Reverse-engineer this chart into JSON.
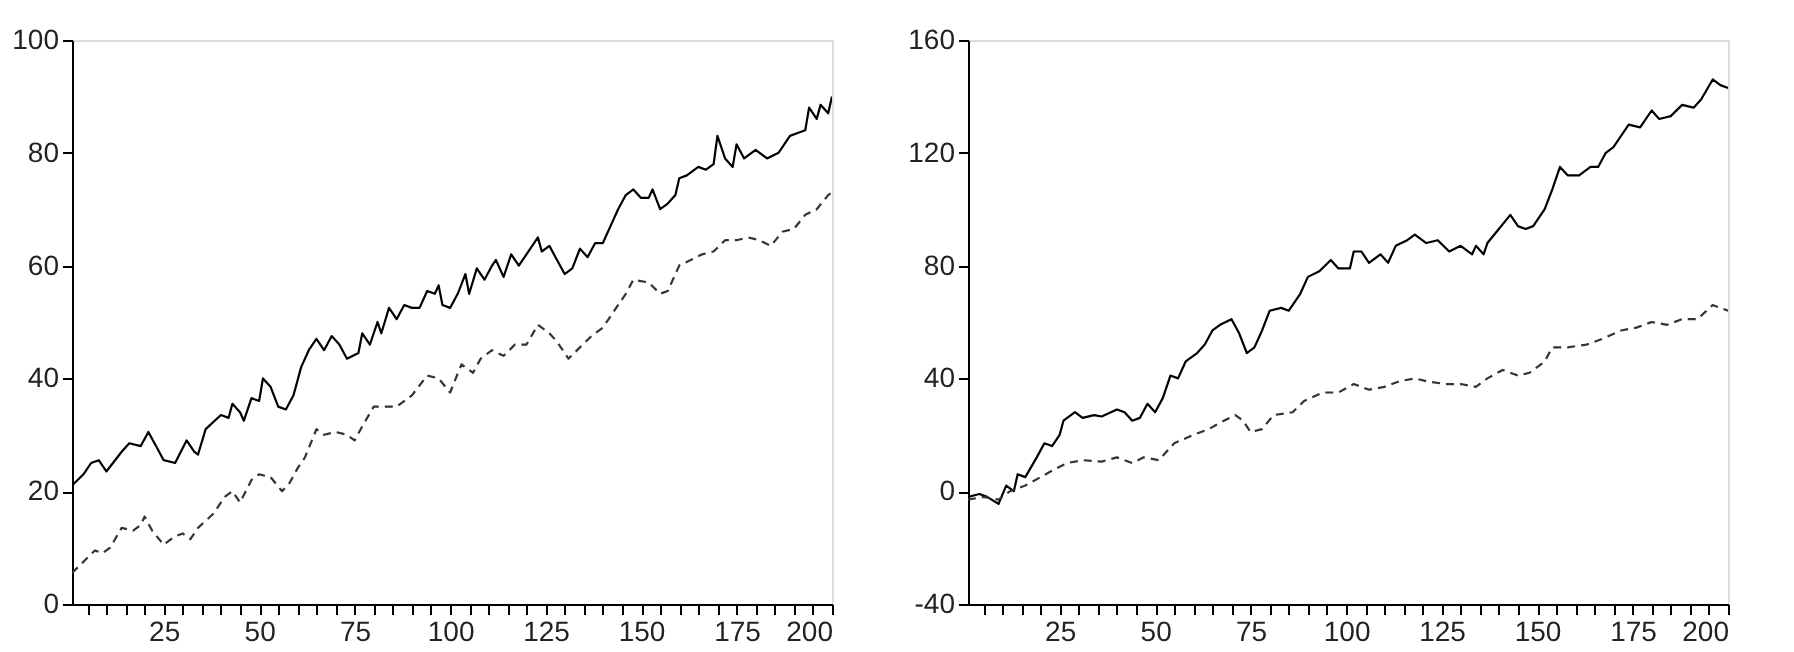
{
  "chart_data": [
    {
      "type": "line",
      "xlim": [
        1,
        200
      ],
      "ylim": [
        0,
        100
      ],
      "yticks": [
        0,
        20,
        40,
        60,
        80,
        100
      ],
      "grid": false,
      "marker": "none",
      "xticks": [
        {
          "value": 5,
          "label": null
        },
        {
          "value": 10,
          "label": null
        },
        {
          "value": 15,
          "label": null
        },
        {
          "value": 20,
          "label": null
        },
        25,
        {
          "value": 30,
          "label": null
        },
        {
          "value": 35,
          "label": null
        },
        {
          "value": 40,
          "label": null
        },
        {
          "value": 45,
          "label": null
        },
        50,
        {
          "value": 55,
          "label": null
        },
        {
          "value": 60,
          "label": null
        },
        {
          "value": 65,
          "label": null
        },
        {
          "value": 70,
          "label": null
        },
        75,
        {
          "value": 80,
          "label": null
        },
        {
          "value": 85,
          "label": null
        },
        {
          "value": 90,
          "label": null
        },
        {
          "value": 95,
          "label": null
        },
        100,
        {
          "value": 105,
          "label": null
        },
        {
          "value": 110,
          "label": null
        },
        {
          "value": 115,
          "label": null
        },
        {
          "value": 120,
          "label": null
        },
        125,
        {
          "value": 130,
          "label": null
        },
        {
          "value": 135,
          "label": null
        },
        {
          "value": 140,
          "label": null
        },
        {
          "value": 145,
          "label": null
        },
        150,
        {
          "value": 155,
          "label": null
        },
        {
          "value": 160,
          "label": null
        },
        {
          "value": 165,
          "label": null
        },
        {
          "value": 170,
          "label": null
        },
        175,
        {
          "value": 180,
          "label": null
        },
        {
          "value": 185,
          "label": null
        },
        {
          "value": 190,
          "label": null
        },
        {
          "value": 195,
          "label": null
        },
        200
      ],
      "series": [
        {
          "color": "#000000",
          "line_style": "solid",
          "x": [
            1,
            4,
            6,
            8,
            10,
            14,
            16,
            19,
            21,
            23,
            25,
            28,
            31,
            33,
            34,
            36,
            40,
            42,
            43,
            45,
            46,
            48,
            50,
            51,
            53,
            55,
            57,
            59,
            61,
            63,
            65,
            67,
            69,
            71,
            73,
            76,
            77,
            79,
            81,
            82,
            84,
            86,
            88,
            90,
            92,
            94,
            96,
            97,
            98,
            100,
            102,
            104,
            105,
            107,
            109,
            111,
            112,
            114,
            116,
            118,
            120,
            123,
            124,
            126,
            128,
            130,
            132,
            134,
            136,
            138,
            140,
            142,
            144,
            146,
            148,
            150,
            152,
            153,
            155,
            157,
            159,
            160,
            162,
            165,
            167,
            169,
            170,
            172,
            174,
            175,
            177,
            180,
            183,
            186,
            189,
            191,
            193,
            194,
            196,
            197,
            199,
            200
          ],
          "values": [
            21,
            23,
            25,
            25.5,
            23.5,
            27,
            28.5,
            28,
            30.5,
            28,
            25.5,
            25,
            29,
            27,
            26.5,
            31,
            33.5,
            33,
            35.5,
            34,
            32.5,
            36.5,
            36,
            40,
            38.5,
            35,
            34.5,
            37,
            42,
            45,
            47,
            45,
            47.5,
            46,
            43.5,
            44.5,
            48,
            46,
            50,
            48,
            52.5,
            50.5,
            53,
            52.5,
            52.5,
            55.5,
            55,
            56.5,
            53,
            52.5,
            55,
            58.5,
            55,
            59.5,
            57.5,
            60,
            61,
            58,
            62,
            60,
            62,
            65,
            62.5,
            63.5,
            61,
            58.5,
            59.5,
            63,
            61.5,
            64,
            64,
            67,
            70,
            72.5,
            73.5,
            72,
            72,
            73.5,
            70,
            71,
            72.5,
            75.5,
            76,
            77.5,
            77,
            78,
            83,
            79,
            77.5,
            81.5,
            79,
            80.5,
            79,
            80,
            83,
            83.5,
            84,
            88,
            86,
            88.5,
            87,
            90
          ]
        },
        {
          "color": "#333333",
          "line_style": "dashed",
          "x": [
            1,
            4,
            7,
            9,
            11,
            14,
            17,
            19,
            20,
            22,
            25,
            28,
            30,
            32,
            34,
            38,
            41,
            43,
            45,
            48,
            50,
            53,
            56,
            58,
            60,
            62,
            65,
            67,
            70,
            73,
            75,
            77,
            80,
            83,
            86,
            90,
            94,
            97,
            100,
            103,
            106,
            108,
            111,
            114,
            117,
            120,
            123,
            126,
            128,
            131,
            134,
            137,
            140,
            143,
            146,
            148,
            152,
            155,
            157,
            160,
            163,
            166,
            169,
            172,
            175,
            178,
            181,
            184,
            187,
            190,
            193,
            196,
            199,
            200
          ],
          "values": [
            5.5,
            7.5,
            9.5,
            9,
            10,
            13.5,
            13,
            14,
            15.5,
            13,
            10.5,
            12,
            12.5,
            11.5,
            13.5,
            16,
            19,
            20,
            18,
            22,
            23,
            22.5,
            20,
            21.5,
            24,
            26,
            31,
            30,
            30.5,
            30,
            29,
            31.5,
            35,
            35,
            35,
            37,
            40.5,
            40,
            37.5,
            42.5,
            41,
            43.5,
            45,
            44,
            46,
            46,
            49.5,
            48,
            46.5,
            43.5,
            45.5,
            47.5,
            49,
            52,
            55,
            57.5,
            57,
            55,
            55.5,
            60,
            61,
            62,
            62.5,
            64.5,
            64.5,
            65,
            64.5,
            63.5,
            66,
            66.5,
            69,
            70,
            72.5,
            73
          ]
        }
      ]
    },
    {
      "type": "line",
      "xlim": [
        1,
        200
      ],
      "ylim": [
        -40,
        160
      ],
      "yticks": [
        -40,
        0,
        40,
        80,
        120,
        160
      ],
      "grid": false,
      "marker": "none",
      "xticks": [
        {
          "value": 5,
          "label": null
        },
        {
          "value": 10,
          "label": null
        },
        {
          "value": 15,
          "label": null
        },
        {
          "value": 20,
          "label": null
        },
        25,
        {
          "value": 30,
          "label": null
        },
        {
          "value": 35,
          "label": null
        },
        {
          "value": 40,
          "label": null
        },
        {
          "value": 45,
          "label": null
        },
        50,
        {
          "value": 55,
          "label": null
        },
        {
          "value": 60,
          "label": null
        },
        {
          "value": 65,
          "label": null
        },
        {
          "value": 70,
          "label": null
        },
        75,
        {
          "value": 80,
          "label": null
        },
        {
          "value": 85,
          "label": null
        },
        {
          "value": 90,
          "label": null
        },
        {
          "value": 95,
          "label": null
        },
        100,
        {
          "value": 105,
          "label": null
        },
        {
          "value": 110,
          "label": null
        },
        {
          "value": 115,
          "label": null
        },
        {
          "value": 120,
          "label": null
        },
        125,
        {
          "value": 130,
          "label": null
        },
        {
          "value": 135,
          "label": null
        },
        {
          "value": 140,
          "label": null
        },
        {
          "value": 145,
          "label": null
        },
        150,
        {
          "value": 155,
          "label": null
        },
        {
          "value": 160,
          "label": null
        },
        {
          "value": 165,
          "label": null
        },
        {
          "value": 170,
          "label": null
        },
        175,
        {
          "value": 180,
          "label": null
        },
        {
          "value": 185,
          "label": null
        },
        {
          "value": 190,
          "label": null
        },
        {
          "value": 195,
          "label": null
        },
        200
      ],
      "series": [
        {
          "color": "#000000",
          "line_style": "solid",
          "x": [
            1,
            4,
            6,
            9,
            11,
            13,
            14,
            16,
            19,
            21,
            23,
            25,
            26,
            29,
            31,
            34,
            36,
            40,
            42,
            44,
            46,
            48,
            50,
            52,
            54,
            56,
            58,
            61,
            63,
            65,
            67,
            70,
            72,
            74,
            76,
            78,
            80,
            83,
            85,
            88,
            90,
            93,
            96,
            98,
            101,
            102,
            104,
            106,
            109,
            111,
            113,
            116,
            118,
            121,
            124,
            127,
            130,
            133,
            134,
            136,
            137,
            140,
            143,
            145,
            147,
            149,
            152,
            154,
            156,
            158,
            161,
            164,
            166,
            168,
            170,
            174,
            177,
            180,
            182,
            185,
            188,
            191,
            193,
            196,
            198,
            200
          ],
          "values": [
            -2,
            -1,
            -2,
            -4.5,
            2,
            0,
            6,
            5,
            12,
            17,
            16,
            20,
            25,
            28,
            26,
            27,
            26.5,
            29,
            28,
            25,
            26,
            31,
            28,
            33,
            41,
            40,
            46,
            49,
            52,
            57,
            59,
            61,
            56,
            49,
            51,
            57,
            64,
            65,
            64,
            70,
            76,
            78,
            82,
            79,
            79,
            85,
            85,
            81,
            84,
            81,
            87,
            89,
            91,
            88,
            89,
            85,
            87,
            84,
            87,
            84,
            88,
            93,
            98,
            94,
            93,
            94,
            100,
            107,
            115,
            112,
            112,
            115,
            115,
            120,
            122,
            130,
            129,
            135,
            132,
            133,
            137,
            136,
            139,
            146,
            144,
            143
          ]
        },
        {
          "color": "#333333",
          "line_style": "dashed",
          "x": [
            1,
            5,
            9,
            12,
            16,
            20,
            24,
            27,
            31,
            36,
            40,
            44,
            47,
            51,
            55,
            60,
            64,
            68,
            71,
            73,
            75,
            78,
            81,
            86,
            89,
            94,
            98,
            102,
            106,
            110,
            114,
            118,
            121,
            126,
            130,
            134,
            137,
            141,
            145,
            148,
            152,
            154,
            158,
            163,
            167,
            172,
            176,
            180,
            184,
            188,
            192,
            196,
            200
          ],
          "values": [
            -3,
            -2,
            -3,
            0,
            2,
            5,
            8,
            10,
            11,
            10.5,
            12,
            10,
            12,
            11,
            17,
            20,
            22,
            25,
            27,
            25,
            21,
            22,
            27,
            28,
            32,
            35,
            35,
            38,
            36,
            37,
            39,
            40,
            39,
            38,
            38,
            37,
            40,
            43,
            41,
            42,
            46,
            51,
            51,
            52,
            54,
            57,
            58,
            60,
            59,
            61,
            61,
            66,
            64
          ]
        }
      ]
    }
  ]
}
